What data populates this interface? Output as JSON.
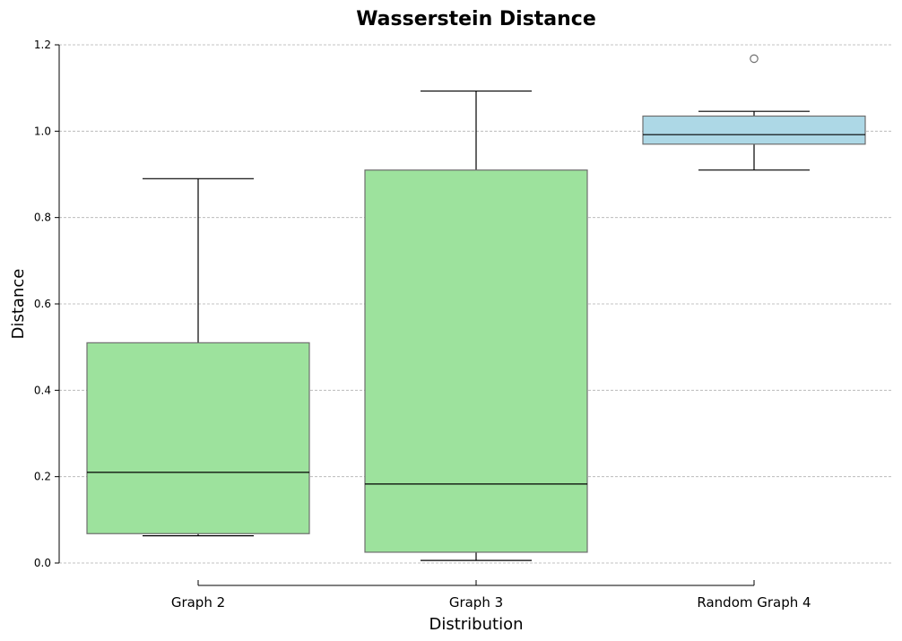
{
  "chart_data": {
    "type": "box",
    "title": "Wasserstein Distance",
    "xlabel": "Distribution",
    "ylabel": "Distance",
    "ylim": [
      -0.04,
      1.2
    ],
    "yticks": [
      0.0,
      0.2,
      0.4,
      0.6,
      0.8,
      1.0,
      1.2
    ],
    "ytick_labels": [
      "0.0",
      "0.2",
      "0.4",
      "0.6",
      "0.8",
      "1.0",
      "1.2"
    ],
    "grid": "horizontal-dashed",
    "categories": [
      "Graph 2",
      "Graph 3",
      "Random Graph 4"
    ],
    "boxes": [
      {
        "name": "Graph 2",
        "whisker_low": 0.063,
        "q1": 0.068,
        "median": 0.21,
        "q3": 0.51,
        "whisker_high": 0.89,
        "outliers": [],
        "color": "#9de29d"
      },
      {
        "name": "Graph 3",
        "whisker_low": 0.006,
        "q1": 0.025,
        "median": 0.183,
        "q3": 0.91,
        "whisker_high": 1.093,
        "outliers": [],
        "color": "#9de29d"
      },
      {
        "name": "Random Graph 4",
        "whisker_low": 0.91,
        "q1": 0.97,
        "median": 0.992,
        "q3": 1.035,
        "whisker_high": 1.046,
        "outliers": [
          1.168
        ],
        "color": "#add8e6"
      }
    ]
  }
}
